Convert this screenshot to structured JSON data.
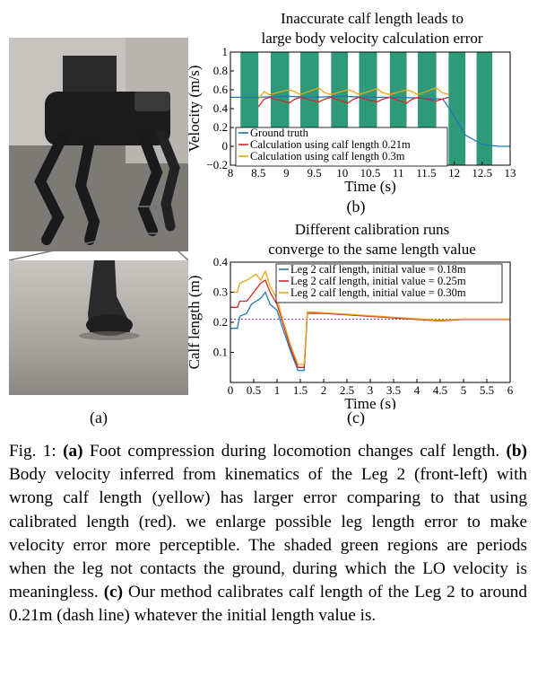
{
  "figure": {
    "panel_a_label": "(a)",
    "panel_b_label": "(b)",
    "panel_c_label": "(c)",
    "caption": {
      "prefix": "Fig. 1: ",
      "a_tag": "(a)",
      "a_text": " Foot compression during locomotion changes calf length. ",
      "b_tag": "(b)",
      "b_text": " Body velocity inferred from kinematics of the Leg 2 (front-left) with wrong calf length (yellow) has larger error comparing to that using calibrated length (red). we enlarge possible leg length error to make velocity error more perceptible. The shaded green regions are periods when the leg not contacts the ground, during which the LO velocity is meaningless. ",
      "c_tag": "(c)",
      "c_text": " Our method calibrates calf length of the Leg 2 to around 0.21m (dash line) whatever the initial length value is."
    }
  },
  "colors": {
    "blue": "#1f77b4",
    "red": "#d62728",
    "yellow": "#e6a817",
    "green_shade": "#2e9a7a",
    "dash_purple": "#7b2fa0"
  },
  "chart_data": [
    {
      "id": "b",
      "type": "line",
      "title_lines": [
        "Inaccurate calf length leads to",
        "large body velocity calculation error"
      ],
      "xlabel": "Time (s)",
      "ylabel": "Velocity (m/s)",
      "xlim": [
        8,
        13
      ],
      "ylim": [
        -0.2,
        1.0
      ],
      "xticks": [
        8,
        8.5,
        9,
        9.5,
        10,
        10.5,
        11,
        11.5,
        12,
        12.5,
        13
      ],
      "xtick_labels": [
        "8",
        "8.5",
        "9",
        "9.5",
        "10",
        "10.5",
        "11",
        "11.5",
        "12",
        "12.5",
        "13"
      ],
      "yticks": [
        -0.2,
        0,
        0.2,
        0.4,
        0.6,
        0.8,
        1
      ],
      "ytick_labels": [
        "−0.2",
        "0",
        "0.2",
        "0.4",
        "0.6",
        "0.8",
        "1"
      ],
      "shaded_regions": [
        [
          8.18,
          8.5
        ],
        [
          8.72,
          9.05
        ],
        [
          9.25,
          9.58
        ],
        [
          9.8,
          10.1
        ],
        [
          10.3,
          10.62
        ],
        [
          10.85,
          11.15
        ],
        [
          11.35,
          11.68
        ],
        [
          11.9,
          12.2
        ],
        [
          12.4,
          12.68
        ]
      ],
      "legend": [
        "Ground truth",
        "Calculation using calf length 0.21m",
        "Calculation using calf length 0.3m"
      ],
      "series": [
        {
          "name": "Ground truth",
          "x": [
            8,
            8.5,
            9,
            9.5,
            10,
            10.5,
            11,
            11.5,
            11.8,
            12,
            12.2,
            12.5,
            12.8,
            13
          ],
          "y": [
            0.52,
            0.52,
            0.53,
            0.52,
            0.53,
            0.52,
            0.52,
            0.51,
            0.5,
            0.32,
            0.12,
            0.02,
            0.0,
            0.0
          ]
        },
        {
          "name": "Calculation using calf length 0.21m",
          "x": [
            8.5,
            8.6,
            8.7,
            9.05,
            9.15,
            9.25,
            9.58,
            9.68,
            9.8,
            10.1,
            10.2,
            10.3,
            10.62,
            10.72,
            10.85,
            11.15,
            11.25,
            11.35,
            11.68,
            11.78,
            11.9
          ],
          "y": [
            0.42,
            0.5,
            0.52,
            0.46,
            0.5,
            0.52,
            0.47,
            0.5,
            0.52,
            0.46,
            0.5,
            0.52,
            0.47,
            0.5,
            0.52,
            0.46,
            0.5,
            0.52,
            0.48,
            0.5,
            0.52
          ]
        },
        {
          "name": "Calculation using calf length 0.3m",
          "x": [
            8.5,
            8.6,
            8.7,
            9.05,
            9.15,
            9.25,
            9.58,
            9.68,
            9.8,
            10.1,
            10.2,
            10.3,
            10.62,
            10.72,
            10.85,
            11.15,
            11.25,
            11.35,
            11.68,
            11.78,
            11.9
          ],
          "y": [
            0.5,
            0.58,
            0.55,
            0.6,
            0.58,
            0.55,
            0.62,
            0.57,
            0.55,
            0.6,
            0.58,
            0.55,
            0.61,
            0.57,
            0.55,
            0.6,
            0.58,
            0.55,
            0.62,
            0.57,
            0.55
          ]
        }
      ]
    },
    {
      "id": "c",
      "type": "line",
      "title_lines": [
        "Different calibration runs",
        "converge to the same length value"
      ],
      "xlabel": "Time (s)",
      "ylabel": "Calf length (m)",
      "xlim": [
        0,
        6
      ],
      "ylim": [
        0,
        0.4
      ],
      "xticks": [
        0,
        0.5,
        1,
        1.5,
        2,
        2.5,
        3,
        3.5,
        4,
        4.5,
        5,
        5.5,
        6
      ],
      "xtick_labels": [
        "0",
        "0.5",
        "1",
        "1.5",
        "2",
        "2.5",
        "3",
        "3.5",
        "4",
        "4.5",
        "5",
        "5.5",
        "6"
      ],
      "yticks": [
        0.1,
        0.2,
        0.3,
        0.4
      ],
      "ytick_labels": [
        "0.1",
        "0.2",
        "0.3",
        "0.4"
      ],
      "reference_line": 0.21,
      "legend": [
        "Leg 2 calf length, initial value = 0.18m",
        "Leg 2 calf length, initial value = 0.25m",
        "Leg 2 calf length, initial value = 0.30m"
      ],
      "series": [
        {
          "name": "Leg 2 calf length, initial value = 0.18m",
          "x": [
            0,
            0.15,
            0.2,
            0.35,
            0.45,
            0.55,
            0.65,
            0.75,
            0.85,
            1.0,
            1.1,
            1.3,
            1.45,
            1.58,
            1.65,
            2.0,
            3.0,
            4.0,
            4.5,
            5.0,
            6.0
          ],
          "y": [
            0.18,
            0.18,
            0.22,
            0.23,
            0.26,
            0.27,
            0.28,
            0.3,
            0.26,
            0.24,
            0.19,
            0.1,
            0.04,
            0.04,
            0.23,
            0.23,
            0.22,
            0.21,
            0.205,
            0.21,
            0.21
          ]
        },
        {
          "name": "Leg 2 calf length, initial value = 0.25m",
          "x": [
            0,
            0.15,
            0.2,
            0.35,
            0.45,
            0.55,
            0.65,
            0.75,
            0.85,
            1.0,
            1.1,
            1.3,
            1.45,
            1.58,
            1.65,
            2.0,
            3.0,
            4.0,
            4.5,
            5.0,
            6.0
          ],
          "y": [
            0.25,
            0.25,
            0.27,
            0.27,
            0.29,
            0.31,
            0.33,
            0.34,
            0.3,
            0.26,
            0.21,
            0.11,
            0.05,
            0.05,
            0.23,
            0.23,
            0.22,
            0.21,
            0.205,
            0.21,
            0.21
          ]
        },
        {
          "name": "Leg 2 calf length, initial value = 0.30m",
          "x": [
            0,
            0.15,
            0.2,
            0.35,
            0.45,
            0.55,
            0.65,
            0.75,
            0.85,
            1.0,
            1.1,
            1.3,
            1.45,
            1.58,
            1.65,
            2.0,
            3.0,
            4.0,
            4.5,
            5.0,
            6.0
          ],
          "y": [
            0.3,
            0.3,
            0.33,
            0.34,
            0.35,
            0.36,
            0.34,
            0.37,
            0.32,
            0.28,
            0.22,
            0.12,
            0.06,
            0.06,
            0.235,
            0.232,
            0.222,
            0.212,
            0.207,
            0.211,
            0.211
          ]
        }
      ]
    }
  ]
}
